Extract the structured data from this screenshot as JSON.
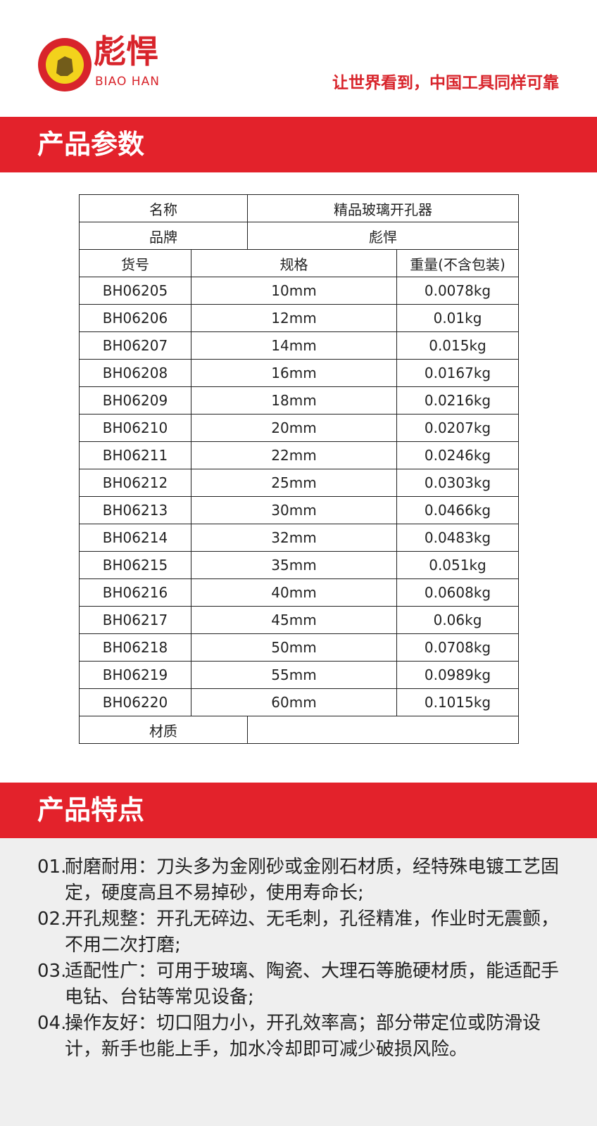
{
  "header": {
    "brand_name": "彪悍",
    "brand_latin": "BIAO HAN",
    "slogan": "让世界看到，中国工具同样可靠"
  },
  "params": {
    "title": "产品参数",
    "table": {
      "name_label": "名称",
      "name_value": "精品玻璃开孔器",
      "brand_label": "品牌",
      "brand_value": "彪悍",
      "columns": [
        "货号",
        "规格",
        "重量(不含包装)"
      ],
      "rows": [
        [
          "BH06205",
          "10mm",
          "0.0078kg"
        ],
        [
          "BH06206",
          "12mm",
          "0.01kg"
        ],
        [
          "BH06207",
          "14mm",
          "0.015kg"
        ],
        [
          "BH06208",
          "16mm",
          "0.0167kg"
        ],
        [
          "BH06209",
          "18mm",
          "0.0216kg"
        ],
        [
          "BH06210",
          "20mm",
          "0.0207kg"
        ],
        [
          "BH06211",
          "22mm",
          "0.0246kg"
        ],
        [
          "BH06212",
          "25mm",
          "0.0303kg"
        ],
        [
          "BH06213",
          "30mm",
          "0.0466kg"
        ],
        [
          "BH06214",
          "32mm",
          "0.0483kg"
        ],
        [
          "BH06215",
          "35mm",
          "0.051kg"
        ],
        [
          "BH06216",
          "40mm",
          "0.0608kg"
        ],
        [
          "BH06217",
          "45mm",
          "0.06kg"
        ],
        [
          "BH06218",
          "50mm",
          "0.0708kg"
        ],
        [
          "BH06219",
          "55mm",
          "0.0989kg"
        ],
        [
          "BH06220",
          "60mm",
          "0.1015kg"
        ]
      ],
      "material_label": "材质"
    }
  },
  "features": {
    "title": "产品特点",
    "items": [
      {
        "number": "01.",
        "text": "耐磨耐用：刀头多为金刚砂或金刚石材质，经特殊电镀工艺固定，硬度高且不易掉砂，使用寿命长;"
      },
      {
        "number": "02.",
        "text": "开孔规整：开孔无碎边、无毛刺，孔径精准，作业时无震颤，不用二次打磨;"
      },
      {
        "number": "03.",
        "text": "适配性广：可用于玻璃、陶瓷、大理石等脆硬材质，能适配手电钻、台钻等常见设备;"
      },
      {
        "number": "04.",
        "text": "操作友好：切口阻力小，开孔效率高；部分带定位或防滑设计，新手也能上手，加水冷却即可减少破损风险。"
      }
    ]
  }
}
